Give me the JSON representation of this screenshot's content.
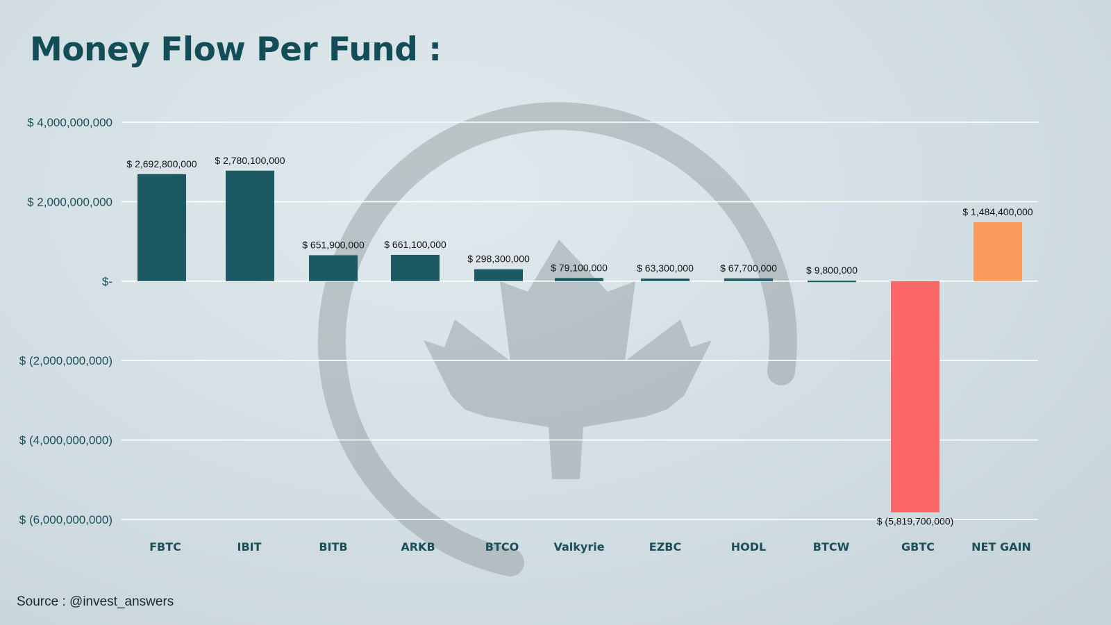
{
  "page": {
    "title": "Money Flow Per Fund :",
    "source": "Source : @invest_answers",
    "background_color": "#d6e2e7"
  },
  "watermark": {
    "icon": "maple-leaf-circle-icon",
    "color": "#8e989c"
  },
  "chart_data": {
    "type": "bar",
    "title": "Money Flow Per Fund :",
    "xlabel": "",
    "ylabel": "",
    "categories": [
      "FBTC",
      "IBIT",
      "BITB",
      "ARKB",
      "BTCO",
      "Valkyrie",
      "EZBC",
      "HODL",
      "BTCW",
      "GBTC",
      "NET GAIN"
    ],
    "values": [
      2692800000,
      2780100000,
      651900000,
      661100000,
      298300000,
      79100000,
      63300000,
      67700000,
      9800000,
      -5819700000,
      1484400000
    ],
    "data_labels": [
      "$ 2,692,800,000",
      "$ 2,780,100,000",
      "$ 651,900,000",
      "$ 661,100,000",
      "$ 298,300,000",
      "$ 79,100,000",
      "$ 63,300,000",
      "$ 67,700,000",
      "$ 9,800,000",
      "$ (5,819,700,000)",
      "$ 1,484,400,000"
    ],
    "bar_colors": [
      "#1b5a63",
      "#1b5a63",
      "#1b5a63",
      "#1b5a63",
      "#1b5a63",
      "#1b5a63",
      "#1b5a63",
      "#1b5a63",
      "#1b5a63",
      "#fb6667",
      "#f99b5c"
    ],
    "ylim": [
      -6000000000,
      4000000000
    ],
    "yticks": [
      4000000000,
      2000000000,
      0,
      -2000000000,
      -4000000000,
      -6000000000
    ],
    "ytick_labels": [
      "$ 4,000,000,000",
      "$ 2,000,000,000",
      "$-",
      "$ (2,000,000,000)",
      "$ (4,000,000,000)",
      "$ (6,000,000,000)"
    ],
    "grid": true,
    "gridline_color": "#ffffff",
    "legend": "none",
    "label_color": "#1a4e58"
  }
}
